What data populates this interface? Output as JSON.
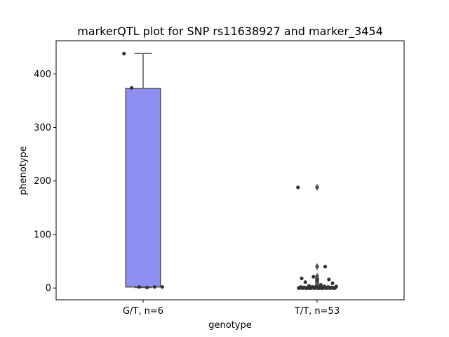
{
  "chart_data": {
    "type": "box",
    "title": "markerQTL plot for SNP rs11638927 and marker_3454",
    "xlabel": "genotype",
    "ylabel": "phenotype",
    "ylim": [
      -22,
      462
    ],
    "yticks": [
      0,
      100,
      200,
      300,
      400
    ],
    "grid": false,
    "categories": [
      "G/T, n=6",
      "T/T, n=53"
    ],
    "boxes": [
      {
        "category": "G/T, n=6",
        "color": "#8f8ff2",
        "q1": 2,
        "median": 2,
        "q3": 373,
        "whisker_low": 1,
        "whisker_high": 438,
        "outliers": []
      },
      {
        "category": "T/T, n=53",
        "color": "#8f8ff2",
        "q1": 0,
        "median": 0,
        "q3": 2,
        "whisker_low": 0,
        "whisker_high": 4,
        "outliers": [
          188,
          40,
          22,
          18,
          15,
          12,
          10,
          8,
          6
        ]
      }
    ],
    "points": [
      {
        "category": "G/T, n=6",
        "values": [
          438,
          374,
          2,
          1,
          2,
          2
        ]
      },
      {
        "category": "T/T, n=53",
        "values": [
          188,
          40,
          21,
          18,
          16,
          15,
          11,
          9,
          6,
          4,
          3,
          3,
          2,
          2,
          2,
          2,
          1,
          1,
          1,
          1,
          1,
          1,
          1,
          1,
          1,
          1,
          1,
          1,
          0,
          0,
          0,
          0,
          0,
          0,
          0,
          0,
          0,
          0,
          0,
          0,
          0,
          0,
          0,
          0,
          0,
          0,
          0,
          0,
          0,
          0,
          0,
          0,
          0
        ]
      }
    ],
    "colors": {
      "box_edge": "#555555",
      "point": "#333333",
      "outlier": "#555555"
    }
  }
}
